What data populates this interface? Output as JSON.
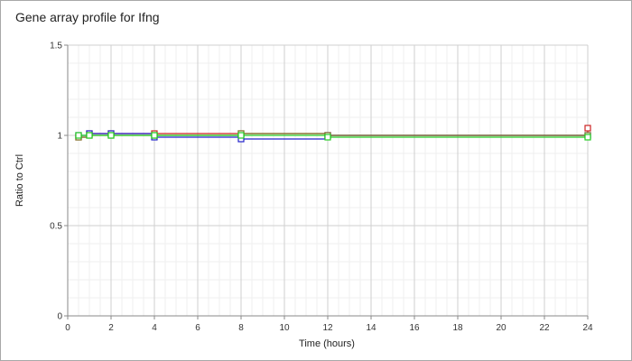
{
  "chart_data": {
    "type": "line",
    "title": "Gene array profile for Ifng",
    "xlabel": "Time (hours)",
    "ylabel": "Ratio to Ctrl",
    "xlim": [
      0,
      24
    ],
    "ylim": [
      0,
      1.5
    ],
    "x_ticks": [
      0,
      2,
      4,
      6,
      8,
      10,
      12,
      14,
      16,
      18,
      20,
      22,
      24
    ],
    "y_ticks": [
      0,
      0.5,
      1,
      1.5
    ],
    "x_tick_labels": [
      "0",
      "2",
      "4",
      "6",
      "8",
      "10",
      "12",
      "14",
      "16",
      "18",
      "20",
      "22",
      "24"
    ],
    "y_tick_labels": [
      "0",
      "0.5",
      "1",
      "1.5"
    ],
    "grid": true,
    "minor_grid": true,
    "legend": "none",
    "series": [
      {
        "color": "#cc2222",
        "x": [
          0.5,
          1,
          2,
          4,
          8,
          12,
          24
        ],
        "y": [
          0.99,
          1.01,
          1.01,
          1.01,
          1.01,
          1.0,
          1.04
        ]
      },
      {
        "color": "#2222cc",
        "x": [
          0.5,
          1,
          2,
          4,
          8,
          12,
          24
        ],
        "y": [
          1.0,
          1.01,
          1.01,
          0.99,
          0.98,
          1.0,
          1.0
        ]
      },
      {
        "color": "#7a7a2a",
        "x": [
          0.5,
          1,
          2,
          4,
          8,
          12,
          24
        ],
        "y": [
          0.99,
          1.0,
          1.0,
          1.0,
          1.01,
          1.0,
          1.0
        ]
      },
      {
        "color": "#22cc22",
        "x": [
          0.5,
          1,
          2,
          4,
          8,
          12,
          24
        ],
        "y": [
          1.0,
          1.0,
          1.0,
          1.0,
          1.0,
          0.99,
          0.99
        ]
      }
    ]
  }
}
